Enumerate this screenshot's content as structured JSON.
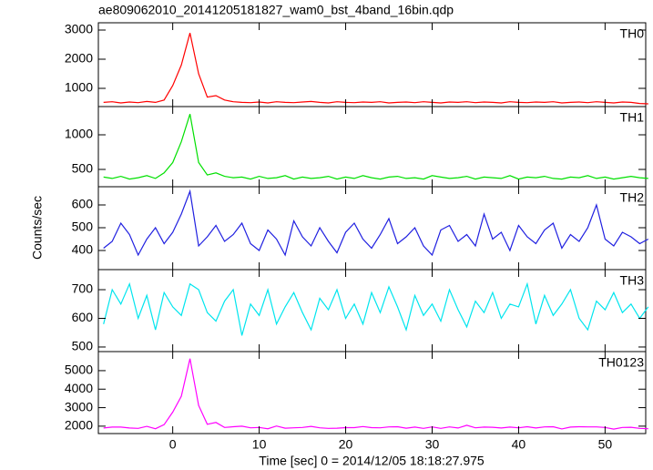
{
  "chart_data": {
    "type": "line",
    "title": "ae809062010_20141205181827_wam0_bst_4band_16bin.qdp",
    "x_label": "Time [sec] 0 = 2014/12/05 18:18:27.975",
    "y_label": "Counts/sec",
    "xlim": [
      -8.6,
      54.7
    ],
    "xticks": [
      0,
      10,
      20,
      30,
      40,
      50
    ],
    "x": [
      -8,
      -7,
      -6,
      -5,
      -4,
      -3,
      -2,
      -1,
      0,
      1,
      2,
      3,
      4,
      5,
      6,
      7,
      8,
      9,
      10,
      11,
      12,
      13,
      14,
      15,
      16,
      17,
      18,
      19,
      20,
      21,
      22,
      23,
      24,
      25,
      26,
      27,
      28,
      29,
      30,
      31,
      32,
      33,
      34,
      35,
      36,
      37,
      38,
      39,
      40,
      41,
      42,
      43,
      44,
      45,
      46,
      47,
      48,
      49,
      50,
      51,
      52,
      53,
      54,
      55
    ],
    "series": [
      {
        "name": "TH0",
        "color": "#ff0000",
        "ylim": [
          375,
          3250
        ],
        "yticks": [
          1000,
          2000,
          3000
        ],
        "values": [
          520,
          540,
          500,
          530,
          510,
          550,
          520,
          600,
          1100,
          1800,
          2900,
          1500,
          700,
          750,
          600,
          540,
          520,
          510,
          530,
          500,
          540,
          520,
          510,
          530,
          550,
          520,
          500,
          540,
          520,
          510,
          530,
          520,
          540,
          500,
          520,
          530,
          510,
          540,
          520,
          500,
          530,
          520,
          540,
          510,
          530,
          520,
          500,
          540,
          520,
          510,
          530,
          520,
          540,
          500,
          520,
          530,
          510,
          540,
          520,
          500,
          530,
          520,
          480,
          470
        ]
      },
      {
        "name": "TH1",
        "color": "#00e000",
        "ylim": [
          250,
          1408
        ],
        "yticks": [
          500,
          1000
        ],
        "values": [
          390,
          370,
          400,
          360,
          380,
          410,
          370,
          450,
          600,
          900,
          1300,
          600,
          420,
          450,
          400,
          380,
          390,
          360,
          400,
          370,
          380,
          410,
          360,
          390,
          370,
          380,
          400,
          360,
          390,
          370,
          410,
          380,
          360,
          390,
          400,
          370,
          380,
          360,
          410,
          390,
          370,
          380,
          400,
          360,
          390,
          380,
          370,
          410,
          360,
          390,
          380,
          400,
          370,
          360,
          390,
          380,
          410,
          370,
          390,
          360,
          380,
          400,
          380,
          370
        ]
      },
      {
        "name": "TH2",
        "color": "#2020e0",
        "ylim": [
          316,
          680
        ],
        "yticks": [
          400,
          500,
          600
        ],
        "values": [
          410,
          440,
          520,
          470,
          380,
          450,
          500,
          430,
          480,
          560,
          660,
          420,
          460,
          510,
          440,
          470,
          520,
          430,
          400,
          490,
          450,
          380,
          530,
          460,
          420,
          500,
          440,
          390,
          480,
          520,
          450,
          410,
          470,
          540,
          430,
          460,
          500,
          420,
          380,
          490,
          510,
          440,
          470,
          420,
          560,
          450,
          480,
          400,
          510,
          460,
          430,
          490,
          520,
          410,
          470,
          440,
          500,
          600,
          450,
          420,
          480,
          460,
          430,
          450
        ]
      },
      {
        "name": "TH3",
        "color": "#00e5ee",
        "ylim": [
          484,
          770
        ],
        "yticks": [
          500,
          600,
          700
        ],
        "values": [
          580,
          700,
          650,
          720,
          600,
          680,
          560,
          690,
          640,
          610,
          720,
          700,
          620,
          590,
          660,
          700,
          540,
          650,
          610,
          700,
          580,
          640,
          690,
          620,
          560,
          670,
          630,
          700,
          600,
          650,
          580,
          690,
          620,
          710,
          640,
          560,
          680,
          610,
          650,
          590,
          700,
          630,
          570,
          660,
          620,
          690,
          600,
          650,
          640,
          720,
          580,
          680,
          610,
          650,
          700,
          600,
          560,
          660,
          630,
          690,
          620,
          650,
          600,
          640
        ]
      },
      {
        "name": "TH0123",
        "color": "#ff00ff",
        "ylim": [
          1600,
          6030
        ],
        "yticks": [
          2000,
          3000,
          4000,
          5000
        ],
        "values": [
          1900,
          1950,
          1950,
          1900,
          1880,
          1990,
          1860,
          2080,
          2760,
          3620,
          5650,
          3120,
          2100,
          2200,
          1930,
          1970,
          2000,
          1910,
          1930,
          1860,
          2010,
          1890,
          1910,
          1930,
          1990,
          1910,
          1880,
          1890,
          1920,
          1920,
          1980,
          1920,
          1910,
          1960,
          1970,
          1890,
          1950,
          1880,
          1960,
          1880,
          1960,
          1900,
          2050,
          1910,
          1950,
          1940,
          1900,
          1950,
          1910,
          1970,
          1900,
          1960,
          1970,
          1850,
          1950,
          1970,
          1960,
          1960,
          1930,
          1840,
          1930,
          1940,
          1880,
          1860
        ]
      }
    ]
  }
}
